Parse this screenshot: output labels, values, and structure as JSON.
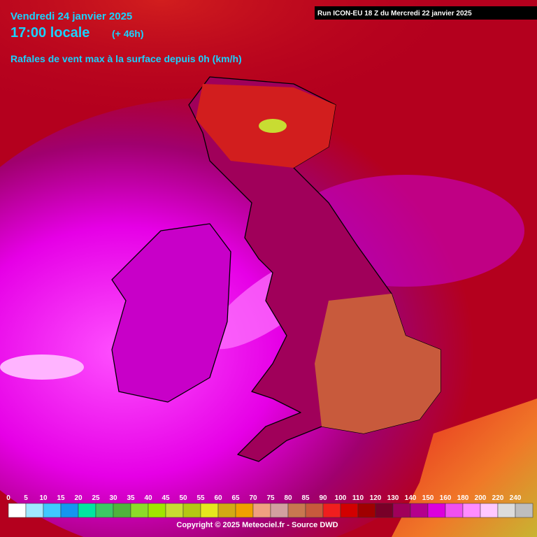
{
  "header": {
    "date": "Vendredi 24 janvier 2025",
    "time": "17:00 locale",
    "offset": "(+ 46h)",
    "subtitle": "Rafales de vent max à la surface depuis 0h (km/h)",
    "run": "Run ICON-EU 18 Z du Mercredi 22 janvier 2025"
  },
  "legend": {
    "ticks": [
      0,
      5,
      10,
      15,
      20,
      25,
      30,
      35,
      40,
      45,
      50,
      55,
      60,
      65,
      70,
      75,
      80,
      85,
      90,
      100,
      110,
      120,
      130,
      140,
      150,
      160,
      180,
      200,
      220,
      240
    ],
    "colors": [
      "#ffffff",
      "#a0e8ff",
      "#40c8ff",
      "#1496f0",
      "#00e6a0",
      "#3cc864",
      "#50b43c",
      "#8cdc28",
      "#a0e600",
      "#c8dc32",
      "#b4c814",
      "#e6e61e",
      "#d2aa14",
      "#f0a000",
      "#f0a080",
      "#d2a0a0",
      "#c87850",
      "#c85a3c",
      "#f01e1e",
      "#d20000",
      "#a00000",
      "#780028",
      "#a0005a",
      "#b4008c",
      "#dc00dc",
      "#f050f0",
      "#ff8cff",
      "#ffc8ff",
      "#dcdcdc",
      "#bebebe"
    ]
  },
  "footer": {
    "copyright": "Copyright © 2025 Meteociel.fr - Source DWD"
  }
}
